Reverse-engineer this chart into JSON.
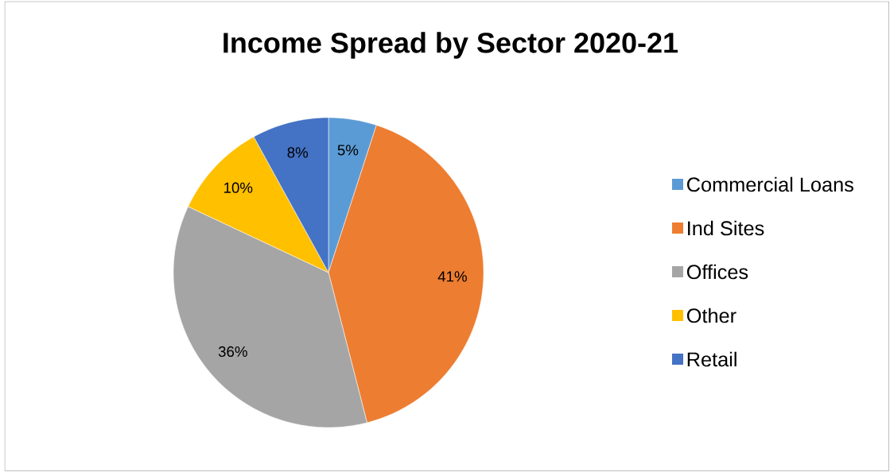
{
  "chart_data": {
    "type": "pie",
    "title": "Income Spread by Sector 2020-21",
    "categories": [
      "Commercial Loans",
      "Ind Sites",
      "Offices",
      "Other",
      "Retail"
    ],
    "values": [
      5,
      41,
      36,
      10,
      8
    ],
    "value_labels": [
      "5%",
      "41%",
      "36%",
      "10%",
      "8%"
    ],
    "colors": [
      "#5b9bd5",
      "#ed7d31",
      "#a5a5a5",
      "#ffc000",
      "#4472c4"
    ],
    "legend": "right"
  }
}
